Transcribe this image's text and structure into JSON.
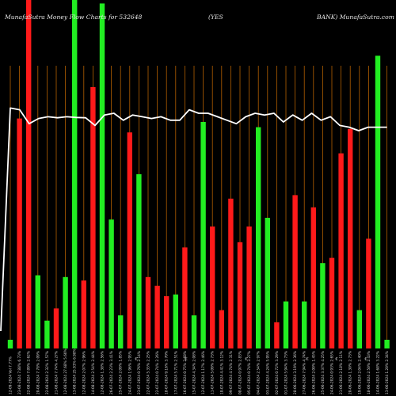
{
  "chart_data": {
    "type": "bar",
    "title_left": "MunafaSutra  Money Flow  Charts for 532648",
    "title_mid": "(YES",
    "title_right": "BANK) MunafaSutra.com",
    "colors": {
      "background": "#000000",
      "up": "#22ee22",
      "down": "#ff1a1a",
      "grid": "#b35f00",
      "line": "#ffffff"
    },
    "bar_scale": [
      0,
      100
    ],
    "bars": [
      {
        "color": "green",
        "value": 2.5
      },
      {
        "color": "red",
        "value": 66
      },
      {
        "color": "red",
        "value": 100
      },
      {
        "color": "green",
        "value": 21
      },
      {
        "color": "green",
        "value": 8
      },
      {
        "color": "red",
        "value": 11.5
      },
      {
        "color": "green",
        "value": 20.5
      },
      {
        "color": "green",
        "value": 100
      },
      {
        "color": "red",
        "value": 19.5
      },
      {
        "color": "red",
        "value": 75
      },
      {
        "color": "green",
        "value": 99
      },
      {
        "color": "green",
        "value": 37
      },
      {
        "color": "green",
        "value": 9.5
      },
      {
        "color": "red",
        "value": 62
      },
      {
        "color": "green",
        "value": 50
      },
      {
        "color": "red",
        "value": 20.5
      },
      {
        "color": "red",
        "value": 18
      },
      {
        "color": "red",
        "value": 15
      },
      {
        "color": "green",
        "value": 15.5
      },
      {
        "color": "red",
        "value": 29
      },
      {
        "color": "green",
        "value": 9.5
      },
      {
        "color": "green",
        "value": 65
      },
      {
        "color": "red",
        "value": 35
      },
      {
        "color": "red",
        "value": 11
      },
      {
        "color": "red",
        "value": 43
      },
      {
        "color": "red",
        "value": 30.5
      },
      {
        "color": "red",
        "value": 35
      },
      {
        "color": "green",
        "value": 63.5
      },
      {
        "color": "green",
        "value": 37.5
      },
      {
        "color": "red",
        "value": 7.5
      },
      {
        "color": "green",
        "value": 13.5
      },
      {
        "color": "red",
        "value": 44
      },
      {
        "color": "green",
        "value": 13.5
      },
      {
        "color": "red",
        "value": 40.5
      },
      {
        "color": "green",
        "value": 24.5
      },
      {
        "color": "red",
        "value": 26
      },
      {
        "color": "red",
        "value": 56
      },
      {
        "color": "red",
        "value": 63
      },
      {
        "color": "green",
        "value": 11
      },
      {
        "color": "red",
        "value": 31.5
      },
      {
        "color": "green",
        "value": 84
      },
      {
        "color": "green",
        "value": 2.5
      }
    ],
    "line_values": [
      5,
      69,
      68.5,
      64.5,
      66,
      66.5,
      66.2,
      66.5,
      66.3,
      66.2,
      64,
      67,
      67.5,
      65.5,
      67,
      66.5,
      66,
      66.5,
      65.5,
      65.5,
      68.5,
      67.5,
      67.5,
      66.5,
      65.5,
      64.5,
      66.5,
      67.5,
      67,
      67.5,
      65,
      67,
      65.5,
      67.5,
      65.5,
      66.5,
      64,
      63.5,
      62.5,
      63.5,
      63.5,
      63.5
    ],
    "x_labels": [
      "12-09-2024 Vol 7.77%",
      "23-08-2024 7.88% 6.73%",
      "22-08-2024 7.89% 2.62%",
      "20-08-2024 7.78% 2.09%",
      "22-08-2024 2.32% 1.57%",
      "21-08-2024 7.74% 4.27%",
      "12-08-2024 27.68% 5.60%",
      "13-08-2024 25.93% 6.98%",
      "12-08-2024 2.07% 2.96%",
      "14-08-2024 2.54% 2.44%",
      "12-08-2024 1.38% 2.56%",
      "26-07-2024 2.23% 3.41%",
      "25-07-2024 2.09% 1.85%",
      "24-07-2024 1.96% 2.95%",
      "23-07-2024 0.76% 2.14%",
      "22-07-2024 5.35% 2.25%",
      "22-07-2024 0.74% 2.26%",
      "18-07-2024 9.16% 3.70%",
      "17-07-2024 5.71% 2.51%",
      "16-07-2024 0.75% 2.68%",
      "15-07-2024 4.34% 2.08%",
      "12-07-2024 1.17% 2.46%",
      "11-07-2024 5.09% 2.73%",
      "10-07-2024 4.41% 3.12%",
      "09-07-2024 4.74% 2.31%",
      "08-07-2024 0.97% 2.83%",
      "05-07-2024 0.74% 3.27%",
      "04-07-2024 2.54% 2.97%",
      "03-07-2024 4.24% 5.95%",
      "02-07-2024 0.72% 3.29%",
      "01-07-2024 5.94% 3.73%",
      "28-06-2024 3.19% 2.36%",
      "27-06-2024 7.94% 4.74%",
      "26-06-2024 2.00% 1.45%",
      "25-06-2024 3.37% 4.25%",
      "24-06-2024 0.93% 2.65%",
      "21-06-2024 2.18% 2.11%",
      "20-06-2024 1.30% 2.73%",
      "19-06-2024 2.04% 2.40%",
      "18-06-2024 2.50% 2.43%",
      "14-06-2024 1.68% 3.22%",
      "13-06-2024 1.20% 2.34%"
    ],
    "markers": [
      "€",
      "€",
      "€",
      "€",
      "€",
      "€"
    ]
  }
}
